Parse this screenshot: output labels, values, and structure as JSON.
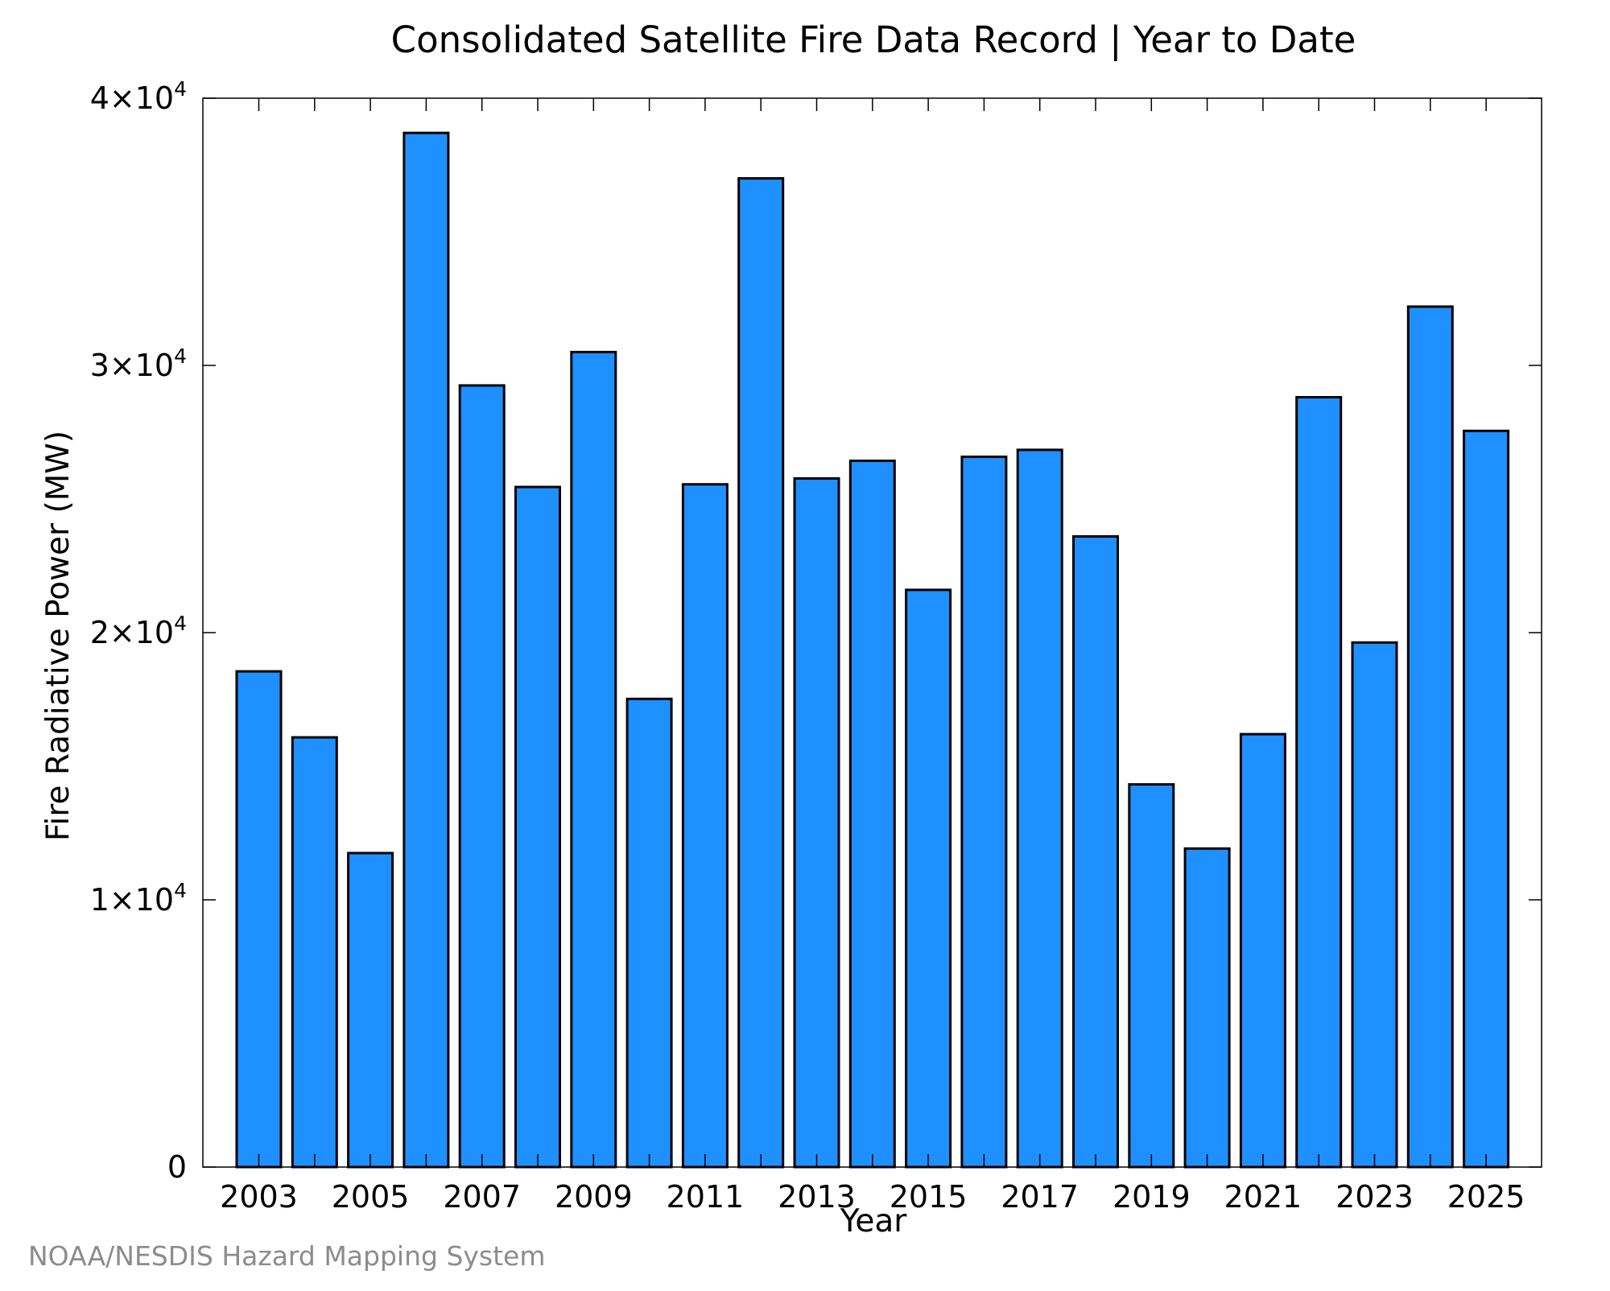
{
  "chart_data": {
    "type": "bar",
    "title": "Consolidated Satellite Fire Data Record | Year to Date",
    "xlabel": "Year",
    "ylabel": "Fire Radiative Power (MW)",
    "categories": [
      "2003",
      "2004",
      "2005",
      "2006",
      "2007",
      "2008",
      "2009",
      "2010",
      "2011",
      "2012",
      "2013",
      "2014",
      "2015",
      "2016",
      "2017",
      "2018",
      "2019",
      "2020",
      "2021",
      "2022",
      "2023",
      "2024",
      "2025"
    ],
    "values": [
      18550,
      16080,
      11750,
      38700,
      29250,
      25450,
      30500,
      17520,
      25550,
      37000,
      25770,
      26430,
      21600,
      26580,
      26840,
      23600,
      14320,
      11920,
      16200,
      28810,
      19630,
      32200,
      27550
    ],
    "ylim": [
      0,
      40000
    ],
    "yticks": [
      {
        "value": 0,
        "mantissa": "0",
        "exponent": ""
      },
      {
        "value": 10000,
        "mantissa": "1×10",
        "exponent": "4"
      },
      {
        "value": 20000,
        "mantissa": "2×10",
        "exponent": "4"
      },
      {
        "value": 30000,
        "mantissa": "3×10",
        "exponent": "4"
      },
      {
        "value": 40000,
        "mantissa": "4×10",
        "exponent": "4"
      }
    ],
    "xtick_labels": [
      "2003",
      "2005",
      "2007",
      "2009",
      "2011",
      "2013",
      "2015",
      "2017",
      "2019",
      "2021",
      "2023",
      "2025"
    ],
    "bar_color": "#1e90ff",
    "bar_edge_color": "#000000",
    "grid": false,
    "legend": "none"
  },
  "footer": {
    "source": "NOAA/NESDIS Hazard Mapping System"
  }
}
